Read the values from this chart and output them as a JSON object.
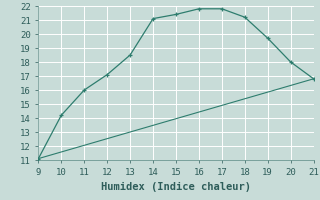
{
  "xlabel": "Humidex (Indice chaleur)",
  "background_color": "#c8dcd8",
  "grid_color": "#b0ccc8",
  "line_color": "#2e7d6e",
  "curve1_x": [
    9,
    10,
    11,
    12,
    13,
    14,
    15,
    16,
    17,
    18,
    19,
    20,
    21
  ],
  "curve1_y": [
    11.1,
    14.2,
    16.0,
    17.1,
    18.5,
    21.1,
    21.4,
    21.8,
    21.8,
    21.2,
    19.7,
    18.0,
    16.8
  ],
  "curve2_x": [
    9,
    21
  ],
  "curve2_y": [
    11.1,
    16.8
  ],
  "xlim": [
    9,
    21
  ],
  "ylim": [
    11,
    22
  ],
  "xticks": [
    9,
    10,
    11,
    12,
    13,
    14,
    15,
    16,
    17,
    18,
    19,
    20,
    21
  ],
  "yticks": [
    11,
    12,
    13,
    14,
    15,
    16,
    17,
    18,
    19,
    20,
    21,
    22
  ],
  "fontsize_ticks": 6.5,
  "fontsize_xlabel": 7.5
}
